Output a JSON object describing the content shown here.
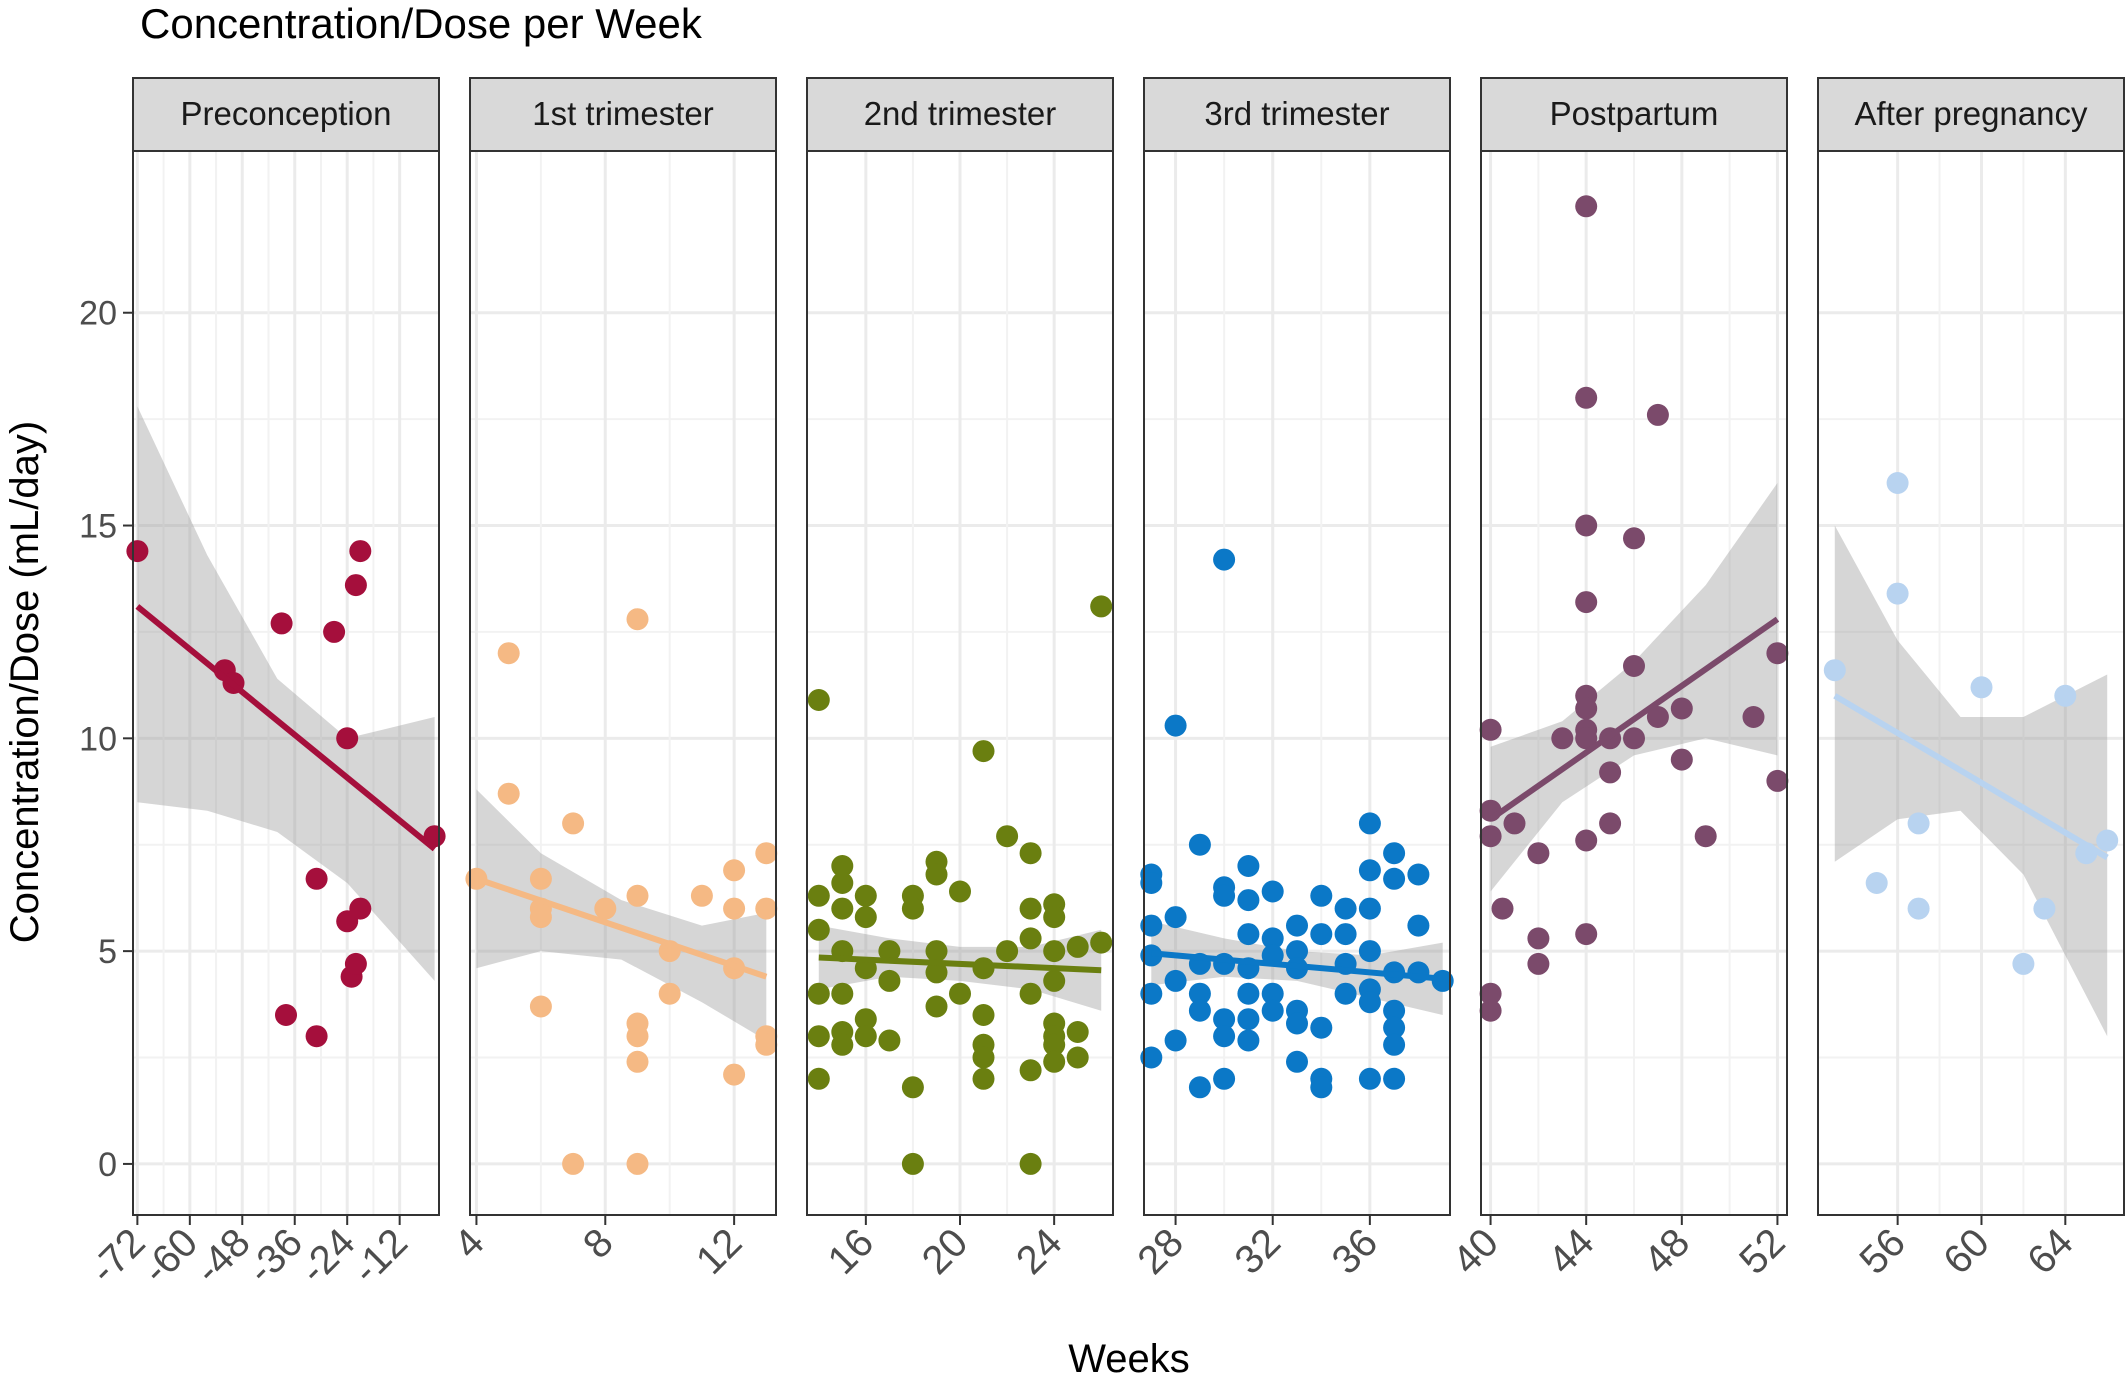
{
  "chart_data": {
    "type": "scatter",
    "title": "Concentration/Dose per Week",
    "xlabel": "Weeks",
    "ylabel": "Concentration/Dose (mL/day)",
    "ylim": [
      -1.2,
      23.8
    ],
    "yticks": [
      0,
      5,
      10,
      15,
      20
    ],
    "grid": true,
    "legend": "none",
    "panels": [
      {
        "name": "Preconception",
        "color": "#a50f3c",
        "xlim": [
          -73,
          -3
        ],
        "xticks": [
          -72,
          -60,
          -48,
          -36,
          -24,
          -12
        ],
        "tick_labels": [
          "-72",
          "-60",
          "-48",
          "-36",
          "-24",
          "-12"
        ],
        "points": [
          [
            -72,
            14.4
          ],
          [
            -52,
            11.6
          ],
          [
            -50,
            11.3
          ],
          [
            -39,
            12.7
          ],
          [
            -38,
            3.5
          ],
          [
            -31,
            6.7
          ],
          [
            -31,
            3.0
          ],
          [
            -27,
            12.5
          ],
          [
            -24,
            10.0
          ],
          [
            -24,
            5.7
          ],
          [
            -23,
            4.4
          ],
          [
            -22,
            4.7
          ],
          [
            -22,
            13.6
          ],
          [
            -21,
            14.4
          ],
          [
            -21,
            6.0
          ],
          [
            -4,
            7.7
          ]
        ],
        "fit": {
          "x": [
            -72,
            -4
          ],
          "y": [
            13.1,
            7.4
          ]
        },
        "band": {
          "x": [
            -72,
            -56,
            -40,
            -24,
            -4
          ],
          "lower": [
            8.5,
            8.3,
            7.8,
            6.6,
            4.3
          ],
          "upper": [
            17.8,
            14.3,
            11.4,
            10.0,
            10.5
          ]
        }
      },
      {
        "name": "1st trimester",
        "color": "#f5b984",
        "xlim": [
          3.8,
          13.3
        ],
        "xticks": [
          4,
          8,
          12
        ],
        "tick_labels": [
          "4",
          "8",
          "12"
        ],
        "points": [
          [
            4,
            6.7
          ],
          [
            5,
            12.0
          ],
          [
            5,
            8.7
          ],
          [
            6,
            6.7
          ],
          [
            6,
            6.0
          ],
          [
            6,
            5.8
          ],
          [
            6,
            3.7
          ],
          [
            7,
            8.0
          ],
          [
            7,
            0.0
          ],
          [
            8,
            6.0
          ],
          [
            9,
            12.8
          ],
          [
            9,
            6.3
          ],
          [
            9,
            3.3
          ],
          [
            9,
            3.0
          ],
          [
            9,
            2.4
          ],
          [
            9,
            0.0
          ],
          [
            10,
            5.0
          ],
          [
            10,
            4.0
          ],
          [
            11,
            6.3
          ],
          [
            12,
            6.9
          ],
          [
            12,
            6.0
          ],
          [
            12,
            4.6
          ],
          [
            12,
            2.1
          ],
          [
            13,
            7.3
          ],
          [
            13,
            6.0
          ],
          [
            13,
            3.0
          ],
          [
            13,
            2.8
          ]
        ],
        "fit": {
          "x": [
            4,
            13
          ],
          "y": [
            6.7,
            4.4
          ]
        },
        "band": {
          "x": [
            4,
            6,
            8.5,
            11,
            13
          ],
          "lower": [
            4.6,
            5.0,
            4.8,
            3.8,
            2.9
          ],
          "upper": [
            8.8,
            7.3,
            6.2,
            5.6,
            5.9
          ]
        }
      },
      {
        "name": "2nd trimester",
        "color": "#6a7f10",
        "xlim": [
          13.5,
          26.5
        ],
        "xticks": [
          16,
          20,
          24
        ],
        "tick_labels": [
          "16",
          "20",
          "24"
        ],
        "points": [
          [
            14,
            10.9
          ],
          [
            14,
            6.3
          ],
          [
            14,
            5.5
          ],
          [
            14,
            4.0
          ],
          [
            14,
            3.0
          ],
          [
            14,
            2.0
          ],
          [
            15,
            7.0
          ],
          [
            15,
            6.6
          ],
          [
            15,
            6.0
          ],
          [
            15,
            5.0
          ],
          [
            15,
            4.0
          ],
          [
            15,
            3.1
          ],
          [
            15,
            2.8
          ],
          [
            16,
            6.3
          ],
          [
            16,
            5.8
          ],
          [
            16,
            4.6
          ],
          [
            16,
            3.4
          ],
          [
            16,
            3.0
          ],
          [
            17,
            5.0
          ],
          [
            17,
            4.3
          ],
          [
            17,
            2.9
          ],
          [
            18,
            6.3
          ],
          [
            18,
            6.0
          ],
          [
            18,
            1.8
          ],
          [
            18,
            0.0
          ],
          [
            19,
            7.1
          ],
          [
            19,
            6.8
          ],
          [
            19,
            5.0
          ],
          [
            19,
            4.5
          ],
          [
            19,
            3.7
          ],
          [
            20,
            6.4
          ],
          [
            20,
            4.0
          ],
          [
            21,
            9.7
          ],
          [
            21,
            4.6
          ],
          [
            21,
            3.5
          ],
          [
            21,
            2.8
          ],
          [
            21,
            2.5
          ],
          [
            21,
            2.0
          ],
          [
            22,
            7.7
          ],
          [
            22,
            5.0
          ],
          [
            23,
            7.3
          ],
          [
            23,
            6.0
          ],
          [
            23,
            5.3
          ],
          [
            23,
            4.0
          ],
          [
            23,
            2.2
          ],
          [
            23,
            0.0
          ],
          [
            24,
            6.1
          ],
          [
            24,
            5.8
          ],
          [
            24,
            5.0
          ],
          [
            24,
            4.3
          ],
          [
            24,
            3.3
          ],
          [
            24,
            3.0
          ],
          [
            24,
            2.8
          ],
          [
            24,
            2.4
          ],
          [
            25,
            5.1
          ],
          [
            25,
            3.1
          ],
          [
            25,
            2.5
          ],
          [
            26,
            13.1
          ],
          [
            26,
            5.2
          ]
        ],
        "fit": {
          "x": [
            14,
            26
          ],
          "y": [
            4.85,
            4.55
          ]
        },
        "band": {
          "x": [
            14,
            17,
            20,
            23,
            26
          ],
          "lower": [
            4.1,
            4.4,
            4.3,
            4.1,
            3.6
          ],
          "upper": [
            5.6,
            5.3,
            5.1,
            5.1,
            5.5
          ]
        }
      },
      {
        "name": "3rd trimester",
        "color": "#0b78c7",
        "xlim": [
          26.7,
          39.3
        ],
        "xticks": [
          28,
          32,
          36
        ],
        "tick_labels": [
          "28",
          "32",
          "36"
        ],
        "points": [
          [
            27,
            6.8
          ],
          [
            27,
            6.6
          ],
          [
            27,
            5.6
          ],
          [
            27,
            4.9
          ],
          [
            27,
            4.0
          ],
          [
            27,
            2.5
          ],
          [
            28,
            10.3
          ],
          [
            28,
            5.8
          ],
          [
            28,
            4.3
          ],
          [
            28,
            2.9
          ],
          [
            29,
            7.5
          ],
          [
            29,
            4.7
          ],
          [
            29,
            4.0
          ],
          [
            29,
            3.6
          ],
          [
            29,
            1.8
          ],
          [
            30,
            14.2
          ],
          [
            30,
            6.5
          ],
          [
            30,
            6.3
          ],
          [
            30,
            4.7
          ],
          [
            30,
            3.4
          ],
          [
            30,
            3.0
          ],
          [
            30,
            2.0
          ],
          [
            31,
            7.0
          ],
          [
            31,
            6.2
          ],
          [
            31,
            5.4
          ],
          [
            31,
            4.6
          ],
          [
            31,
            4.0
          ],
          [
            31,
            3.4
          ],
          [
            31,
            2.9
          ],
          [
            32,
            6.4
          ],
          [
            32,
            5.3
          ],
          [
            32,
            4.9
          ],
          [
            32,
            4.0
          ],
          [
            32,
            3.6
          ],
          [
            33,
            5.6
          ],
          [
            33,
            5.0
          ],
          [
            33,
            4.6
          ],
          [
            33,
            3.6
          ],
          [
            33,
            3.3
          ],
          [
            33,
            2.4
          ],
          [
            34,
            6.3
          ],
          [
            34,
            5.4
          ],
          [
            34,
            3.2
          ],
          [
            34,
            2.0
          ],
          [
            34,
            1.8
          ],
          [
            35,
            6.0
          ],
          [
            35,
            5.4
          ],
          [
            35,
            4.7
          ],
          [
            35,
            4.0
          ],
          [
            36,
            8.0
          ],
          [
            36,
            6.9
          ],
          [
            36,
            6.0
          ],
          [
            36,
            5.0
          ],
          [
            36,
            4.1
          ],
          [
            36,
            3.8
          ],
          [
            36,
            2.0
          ],
          [
            37,
            7.3
          ],
          [
            37,
            6.7
          ],
          [
            37,
            4.5
          ],
          [
            37,
            3.6
          ],
          [
            37,
            3.2
          ],
          [
            37,
            2.8
          ],
          [
            37,
            2.0
          ],
          [
            38,
            6.8
          ],
          [
            38,
            5.6
          ],
          [
            38,
            4.5
          ],
          [
            39,
            4.3
          ]
        ],
        "fit": {
          "x": [
            27,
            39
          ],
          "y": [
            4.95,
            4.35
          ]
        },
        "band": {
          "x": [
            27,
            30,
            33,
            36,
            39
          ],
          "lower": [
            4.2,
            4.4,
            4.3,
            3.9,
            3.5
          ],
          "upper": [
            5.7,
            5.3,
            5.0,
            4.9,
            5.2
          ]
        }
      },
      {
        "name": "Postpartum",
        "color": "#7b4a6b",
        "xlim": [
          39.6,
          52.4
        ],
        "xticks": [
          40,
          44,
          48,
          52
        ],
        "tick_labels": [
          "40",
          "44",
          "48",
          "52"
        ],
        "points": [
          [
            40,
            10.2
          ],
          [
            40,
            8.3
          ],
          [
            40,
            7.7
          ],
          [
            40,
            4.0
          ],
          [
            40,
            3.6
          ],
          [
            40.5,
            6.0
          ],
          [
            41,
            8.0
          ],
          [
            42,
            7.3
          ],
          [
            42,
            5.3
          ],
          [
            42,
            4.7
          ],
          [
            43,
            10.0
          ],
          [
            44,
            22.5
          ],
          [
            44,
            18.0
          ],
          [
            44,
            15.0
          ],
          [
            44,
            13.2
          ],
          [
            44,
            11.0
          ],
          [
            44,
            10.7
          ],
          [
            44,
            10.2
          ],
          [
            44,
            10.0
          ],
          [
            44,
            7.6
          ],
          [
            44,
            5.4
          ],
          [
            45,
            10.0
          ],
          [
            45,
            9.2
          ],
          [
            45,
            8.0
          ],
          [
            46,
            14.7
          ],
          [
            46,
            11.7
          ],
          [
            46,
            10.0
          ],
          [
            47,
            17.6
          ],
          [
            47,
            10.5
          ],
          [
            48,
            10.7
          ],
          [
            48,
            9.5
          ],
          [
            49,
            7.7
          ],
          [
            51,
            10.5
          ],
          [
            52,
            12.0
          ],
          [
            52,
            9.0
          ]
        ],
        "fit": {
          "x": [
            40,
            52
          ],
          "y": [
            8.1,
            12.8
          ]
        },
        "band": {
          "x": [
            40,
            43,
            46,
            49,
            52
          ],
          "lower": [
            6.4,
            8.5,
            9.6,
            10.0,
            9.6
          ],
          "upper": [
            9.8,
            10.4,
            11.8,
            13.6,
            16.0
          ]
        }
      },
      {
        "name": "After pregnancy",
        "color": "#b8d3f0",
        "xlim": [
          52.2,
          66.8
        ],
        "xticks": [
          56,
          60,
          64
        ],
        "tick_labels": [
          "56",
          "60",
          "64"
        ],
        "points": [
          [
            53,
            11.6
          ],
          [
            55,
            6.6
          ],
          [
            56,
            16.0
          ],
          [
            56,
            13.4
          ],
          [
            57,
            8.0
          ],
          [
            57,
            6.0
          ],
          [
            60,
            11.2
          ],
          [
            62,
            4.7
          ],
          [
            63,
            6.0
          ],
          [
            64,
            11.0
          ],
          [
            65,
            7.3
          ],
          [
            66,
            7.6
          ]
        ],
        "fit": {
          "x": [
            53,
            66
          ],
          "y": [
            11.0,
            7.2
          ]
        },
        "band": {
          "x": [
            53,
            56,
            59,
            62,
            66
          ],
          "lower": [
            7.1,
            8.1,
            8.3,
            6.8,
            3.0
          ],
          "upper": [
            15.0,
            12.3,
            10.5,
            10.5,
            11.5
          ]
        }
      }
    ]
  }
}
